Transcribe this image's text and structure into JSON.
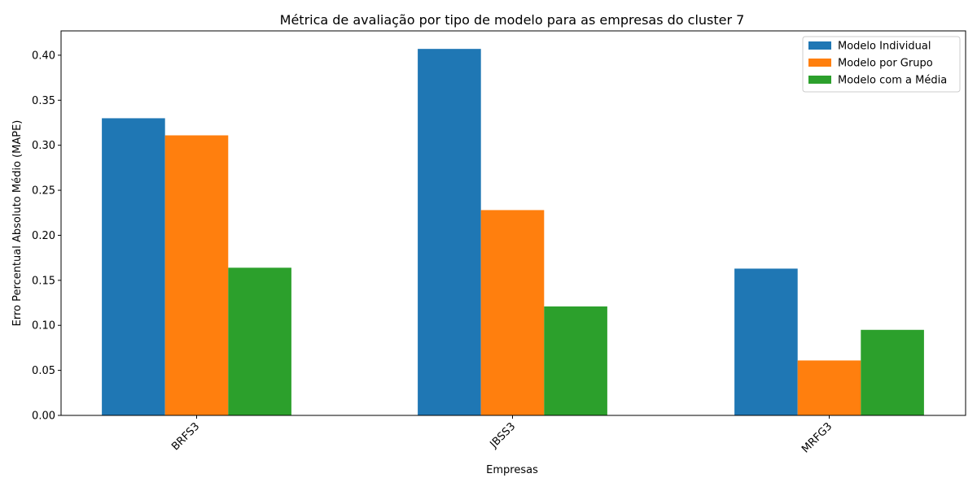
{
  "chart_data": {
    "type": "bar",
    "title": "Métrica de avaliação por tipo de modelo para as empresas do cluster 7",
    "xlabel": "Empresas",
    "ylabel": "Erro Percentual Absoluto Médio (MAPE)",
    "categories": [
      "BRFS3",
      "JBSS3",
      "MRFG3"
    ],
    "series": [
      {
        "name": "Modelo Individual",
        "color": "#1f77b4",
        "values": [
          0.33,
          0.407,
          0.163
        ]
      },
      {
        "name": "Modelo por Grupo",
        "color": "#ff7f0e",
        "values": [
          0.311,
          0.228,
          0.061
        ]
      },
      {
        "name": "Modelo com a Média",
        "color": "#2ca02c",
        "values": [
          0.164,
          0.121,
          0.095
        ]
      }
    ],
    "ylim": [
      0,
      0.427
    ],
    "yticks": [
      0.0,
      0.05,
      0.1,
      0.15,
      0.2,
      0.25,
      0.3,
      0.35,
      0.4
    ],
    "ytick_labels": [
      "0.00",
      "0.05",
      "0.10",
      "0.15",
      "0.20",
      "0.25",
      "0.30",
      "0.35",
      "0.40"
    ],
    "grid": false,
    "legend_position": "top-right",
    "xtick_rotation": 45
  }
}
